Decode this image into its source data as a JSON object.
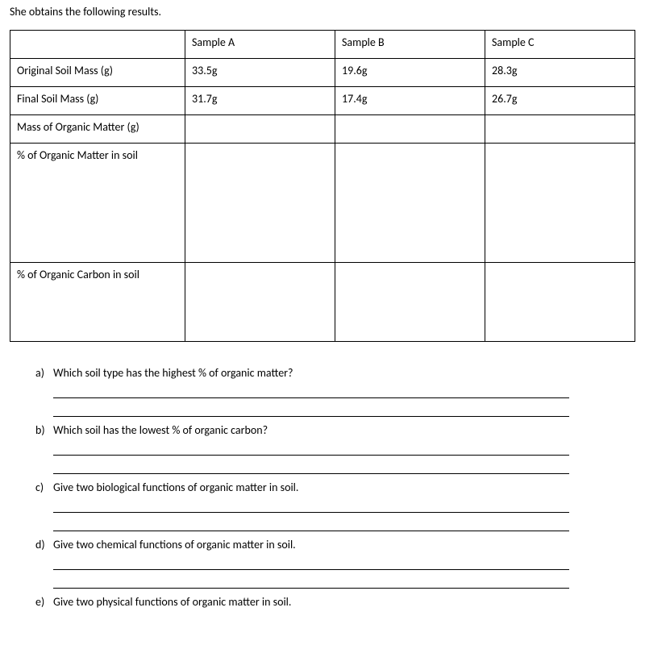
{
  "intro": "She obtains the following results.",
  "table": {
    "columns": [
      "",
      "Sample A",
      "Sample B",
      "Sample C"
    ],
    "rows": [
      {
        "label": "Original Soil Mass (g)",
        "a": "33.5g",
        "b": "19.6g",
        "c": "28.3g",
        "height": "std"
      },
      {
        "label": "Final Soil Mass (g)",
        "a": "31.7g",
        "b": "17.4g",
        "c": "26.7g",
        "height": "std"
      },
      {
        "label": "Mass of Organic Matter (g)",
        "a": "",
        "b": "",
        "c": "",
        "height": "std"
      },
      {
        "label": "% of Organic Matter in soil",
        "a": "",
        "b": "",
        "c": "",
        "height": "tall"
      },
      {
        "label": "% of Organic Carbon in soil",
        "a": "",
        "b": "",
        "c": "",
        "height": "med"
      }
    ]
  },
  "questions": {
    "a": {
      "letter": "a)",
      "text": "Which soil type has the highest % of organic matter?",
      "lines": 2
    },
    "b": {
      "letter": "b)",
      "text": "Which soil has the lowest % of organic carbon?",
      "lines": 2
    },
    "c": {
      "letter": "c)",
      "text": "Give two biological functions of organic matter in soil.",
      "lines": 2
    },
    "d": {
      "letter": "d)",
      "text": "Give two chemical functions of organic matter in soil.",
      "lines": 2
    },
    "e": {
      "letter": "e)",
      "text": "Give two physical functions of organic matter in soil.",
      "lines": 0
    }
  }
}
